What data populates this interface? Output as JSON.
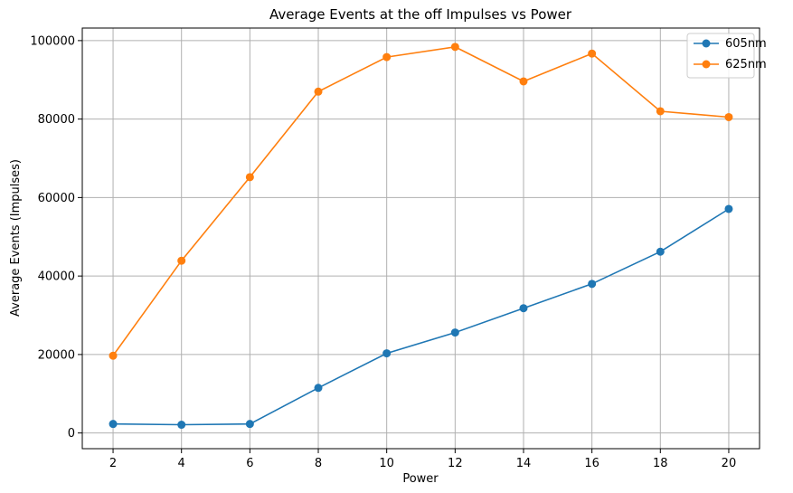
{
  "chart_data": {
    "type": "line",
    "title": "Average Events at the off Impulses vs Power",
    "xlabel": "Power",
    "ylabel": "Average Events (Impulses)",
    "x": [
      2,
      4,
      6,
      8,
      10,
      12,
      14,
      16,
      18,
      20
    ],
    "xticks": [
      2,
      4,
      6,
      8,
      10,
      12,
      14,
      16,
      18,
      20
    ],
    "xtick_labels": [
      "2",
      "4",
      "6",
      "8",
      "10",
      "12",
      "14",
      "16",
      "18",
      "20"
    ],
    "xlim": [
      1.1,
      20.9
    ],
    "yticks": [
      0,
      20000,
      40000,
      60000,
      80000,
      100000
    ],
    "ytick_labels": [
      "0",
      "20000",
      "40000",
      "60000",
      "80000",
      "100000"
    ],
    "ylim": [
      -4000,
      103200
    ],
    "grid": true,
    "legend_position": "top-right",
    "marker": "circle",
    "series": [
      {
        "name": "605nm",
        "color": "#1f77b4",
        "values": [
          2300,
          2100,
          2300,
          11500,
          20300,
          25600,
          31800,
          38000,
          46200,
          57100
        ]
      },
      {
        "name": "625nm",
        "color": "#ff7f0e",
        "values": [
          19700,
          43900,
          65200,
          87000,
          95800,
          98400,
          89600,
          96700,
          82000,
          80500
        ]
      }
    ]
  }
}
